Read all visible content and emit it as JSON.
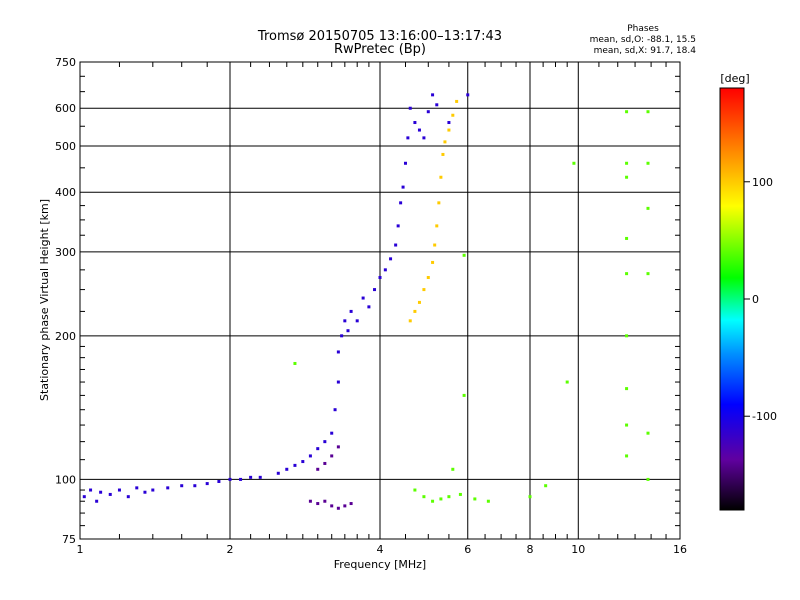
{
  "chart_data": {
    "type": "scatter",
    "title": "Tromsø 20150705 13:16:00–13:17:43",
    "subtitle": "RwPretec (Bp)",
    "xlabel": "Frequency [MHz]",
    "ylabel": "Stationary phase Virtual Height [km]",
    "xscale": "log",
    "yscale": "log",
    "xlim": [
      1,
      16
    ],
    "ylim": [
      75,
      750
    ],
    "x_ticks": [
      1,
      2,
      4,
      6,
      8,
      10,
      16
    ],
    "x_tick_labels": [
      "1",
      "2",
      "4",
      "6",
      "8",
      "10",
      "16"
    ],
    "x_gridlines": [
      2,
      4,
      6,
      8,
      10
    ],
    "y_ticks": [
      75,
      100,
      200,
      300,
      400,
      500,
      600,
      750
    ],
    "y_tick_labels": [
      "75",
      "100",
      "200",
      "300",
      "400",
      "500",
      "600",
      "750"
    ],
    "y_gridlines": [
      100,
      200,
      300,
      400,
      500,
      600
    ],
    "grid": true,
    "colorbar": {
      "label": "[deg]",
      "range": [
        -180,
        180
      ],
      "ticks": [
        100,
        0,
        -100
      ],
      "tick_labels": [
        "100",
        "0",
        "-100"
      ]
    },
    "phase_stats": {
      "heading": "Phases",
      "o_line": "mean, sd,O: -88.1, 15.5",
      "x_line": "mean, sd,X:  91.7, 18.4"
    },
    "series": [
      {
        "name": "O-mode trace (blue, ~-100 deg)",
        "phase": -110,
        "points": [
          [
            1.02,
            92
          ],
          [
            1.05,
            95
          ],
          [
            1.08,
            90
          ],
          [
            1.1,
            94
          ],
          [
            1.15,
            93
          ],
          [
            1.2,
            95
          ],
          [
            1.25,
            92
          ],
          [
            1.3,
            96
          ],
          [
            1.35,
            94
          ],
          [
            1.4,
            95
          ],
          [
            1.5,
            96
          ],
          [
            1.6,
            97
          ],
          [
            1.7,
            97
          ],
          [
            1.8,
            98
          ],
          [
            1.9,
            99
          ],
          [
            2.0,
            100
          ],
          [
            2.1,
            100
          ],
          [
            2.2,
            101
          ],
          [
            2.3,
            101
          ],
          [
            2.5,
            103
          ],
          [
            2.6,
            105
          ],
          [
            2.7,
            107
          ],
          [
            2.8,
            109
          ],
          [
            2.9,
            112
          ],
          [
            3.0,
            116
          ],
          [
            3.1,
            120
          ],
          [
            3.2,
            125
          ],
          [
            3.25,
            140
          ],
          [
            3.3,
            160
          ],
          [
            3.3,
            185
          ],
          [
            3.35,
            200
          ],
          [
            3.4,
            215
          ],
          [
            3.45,
            205
          ],
          [
            3.5,
            225
          ],
          [
            3.6,
            215
          ],
          [
            3.7,
            240
          ],
          [
            3.8,
            230
          ],
          [
            3.9,
            250
          ],
          [
            4.0,
            265
          ],
          [
            4.1,
            275
          ],
          [
            4.2,
            290
          ],
          [
            4.3,
            310
          ],
          [
            4.35,
            340
          ],
          [
            4.4,
            380
          ],
          [
            4.45,
            410
          ],
          [
            4.5,
            460
          ],
          [
            4.55,
            520
          ],
          [
            4.6,
            600
          ],
          [
            4.7,
            560
          ],
          [
            4.8,
            540
          ],
          [
            4.9,
            520
          ],
          [
            5.0,
            590
          ],
          [
            5.1,
            640
          ],
          [
            5.2,
            610
          ],
          [
            5.5,
            560
          ],
          [
            6.0,
            640
          ]
        ]
      },
      {
        "name": "X-mode trace (yellow, ~+100 deg)",
        "phase": 100,
        "points": [
          [
            4.6,
            215
          ],
          [
            4.7,
            225
          ],
          [
            4.8,
            235
          ],
          [
            4.9,
            250
          ],
          [
            5.0,
            265
          ],
          [
            5.1,
            285
          ],
          [
            5.15,
            310
          ],
          [
            5.2,
            340
          ],
          [
            5.25,
            380
          ],
          [
            5.3,
            430
          ],
          [
            5.35,
            480
          ],
          [
            5.4,
            510
          ],
          [
            5.5,
            540
          ],
          [
            5.6,
            580
          ],
          [
            5.7,
            620
          ]
        ]
      },
      {
        "name": "Low echoes (purple, ~-140 deg)",
        "phase": -140,
        "points": [
          [
            2.9,
            90
          ],
          [
            3.0,
            89
          ],
          [
            3.1,
            90
          ],
          [
            3.2,
            88
          ],
          [
            3.3,
            87
          ],
          [
            3.4,
            88
          ],
          [
            3.5,
            89
          ],
          [
            3.0,
            105
          ],
          [
            3.1,
            108
          ],
          [
            3.2,
            112
          ],
          [
            3.3,
            117
          ]
        ]
      },
      {
        "name": "Scattered echoes (mixed phase)",
        "phase": 40,
        "points": [
          [
            4.7,
            95
          ],
          [
            4.9,
            92
          ],
          [
            5.1,
            90
          ],
          [
            5.3,
            91
          ],
          [
            5.5,
            92
          ],
          [
            5.8,
            93
          ],
          [
            6.2,
            91
          ],
          [
            6.6,
            90
          ],
          [
            8.0,
            92
          ],
          [
            8.6,
            97
          ],
          [
            5.6,
            105
          ],
          [
            9.5,
            160
          ],
          [
            12.5,
            112
          ],
          [
            12.5,
            130
          ],
          [
            12.5,
            155
          ],
          [
            12.5,
            200
          ],
          [
            12.5,
            270
          ],
          [
            12.5,
            320
          ],
          [
            12.5,
            430
          ],
          [
            12.5,
            460
          ],
          [
            12.5,
            590
          ],
          [
            13.8,
            125
          ],
          [
            13.8,
            270
          ],
          [
            13.8,
            370
          ],
          [
            13.8,
            460
          ],
          [
            13.8,
            590
          ],
          [
            13.8,
            100
          ],
          [
            9.8,
            460
          ],
          [
            5.9,
            295
          ],
          [
            5.9,
            150
          ],
          [
            2.7,
            175
          ]
        ]
      }
    ]
  }
}
